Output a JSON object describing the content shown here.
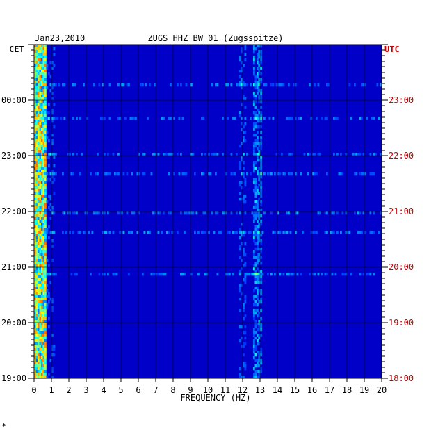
{
  "chart_data": {
    "type": "heatmap",
    "title": "ZUGS HHZ BW 01 (Zugsspitze)",
    "date": "Jan23,2010",
    "xlabel": "FREQUENCY (HZ)",
    "xlim": [
      0,
      20
    ],
    "x_ticks": [
      "0",
      "1",
      "2",
      "3",
      "4",
      "5",
      "6",
      "7",
      "8",
      "9",
      "10",
      "11",
      "12",
      "13",
      "14",
      "15",
      "16",
      "17",
      "18",
      "19",
      "20"
    ],
    "left_axis_label": "CET",
    "left_ticks": [
      "00:00",
      "23:00",
      "22:00",
      "21:00",
      "20:00",
      "19:00"
    ],
    "right_axis_label": "UTC",
    "right_ticks": [
      "23:00",
      "22:00",
      "21:00",
      "20:00",
      "19:00",
      "18:00"
    ],
    "footnote": "*",
    "colors": {
      "background_low": "#0000c8",
      "axis": "#000000",
      "utc_label": "#cc0000",
      "spectral_scale": [
        "#000080",
        "#0000ff",
        "#00ffff",
        "#ffff00",
        "#ff0000"
      ]
    },
    "features": [
      {
        "desc": "strong energy band",
        "freq_range_hz": [
          0.1,
          0.7
        ]
      },
      {
        "desc": "persistent spectral line",
        "freq_hz": 12.8
      },
      {
        "desc": "persistent spectral line",
        "freq_hz": 12.0
      }
    ]
  }
}
